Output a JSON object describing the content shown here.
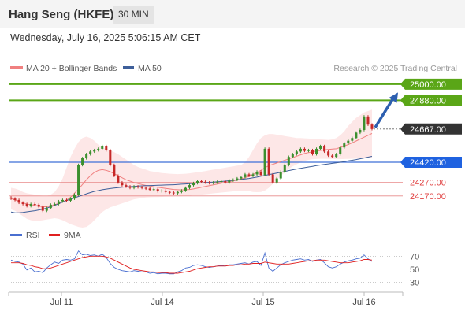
{
  "header": {
    "title": "Hang Seng (HKFE)",
    "interval": "30 MIN"
  },
  "datetime": "Wednesday, July 16, 2025 5:06:15 AM CET",
  "credit": "Research © 2025 Trading Central",
  "colors": {
    "resistance": "#5aa617",
    "support": "#3e6fd8",
    "intermediate": "#e04040",
    "current": "#333333",
    "bull": "#3b8f2e",
    "bear": "#c62828",
    "ma20": "#f08080",
    "ma50": "#3e5f9a",
    "bands": "#fde3e3",
    "arrow": "#2d5fb0",
    "rsi": "#4a6fd0",
    "rsi_ma": "#e02020"
  },
  "chart_data": [
    {
      "type": "candlestick",
      "title": "Hang Seng (HKFE)",
      "legend": [
        {
          "name": "MA 20 + Bollinger Bands",
          "color": "#f08080"
        },
        {
          "name": "MA 50",
          "color": "#3e5f9a"
        }
      ],
      "x_ticks": [
        "Jul 11",
        "Jul 14",
        "Jul 15",
        "Jul 16"
      ],
      "ylim": [
        23970,
        25040
      ],
      "levels": [
        {
          "label": "25000.00",
          "value": 25000,
          "kind": "resistance"
        },
        {
          "label": "24880.00",
          "value": 24880,
          "kind": "resistance"
        },
        {
          "label": "24667.00",
          "value": 24667,
          "kind": "current"
        },
        {
          "label": "24420.00",
          "value": 24420,
          "kind": "support"
        },
        {
          "label": "24270.00",
          "value": 24270,
          "kind": "intermediate"
        },
        {
          "label": "24170.00",
          "value": 24170,
          "kind": "intermediate"
        }
      ],
      "close": [
        24150,
        24140,
        24120,
        24110,
        24095,
        24110,
        24105,
        24090,
        24060,
        24080,
        24105,
        24110,
        24130,
        24140,
        24135,
        24150,
        24180,
        24400,
        24450,
        24480,
        24500,
        24510,
        24520,
        24540,
        24510,
        24400,
        24320,
        24270,
        24250,
        24240,
        24230,
        24240,
        24235,
        24230,
        24225,
        24215,
        24220,
        24205,
        24210,
        24200,
        24195,
        24190,
        24200,
        24210,
        24230,
        24250,
        24265,
        24280,
        24275,
        24270,
        24265,
        24270,
        24275,
        24280,
        24270,
        24285,
        24290,
        24300,
        24310,
        24330,
        24320,
        24330,
        24350,
        24325,
        24520,
        24330,
        24270,
        24300,
        24350,
        24400,
        24460,
        24480,
        24500,
        24520,
        24505,
        24510,
        24480,
        24520,
        24540,
        24500,
        24470,
        24460,
        24480,
        24530,
        24560,
        24580,
        24600,
        24640,
        24660,
        24760,
        24700,
        24667
      ],
      "ma20": [
        24150,
        24140,
        24130,
        24120,
        24110,
        24105,
        24100,
        24095,
        24090,
        24090,
        24095,
        24105,
        24115,
        24125,
        24140,
        24160,
        24190,
        24220,
        24255,
        24290,
        24320,
        24345,
        24360,
        24365,
        24360,
        24350,
        24335,
        24320,
        24305,
        24290,
        24280,
        24270,
        24262,
        24255,
        24248,
        24243,
        24238,
        24235,
        24230,
        24226,
        24222,
        24218,
        24216,
        24215,
        24216,
        24218,
        24222,
        24228,
        24234,
        24240,
        24246,
        24252,
        24258,
        24264,
        24270,
        24276,
        24282,
        24288,
        24295,
        24305,
        24315,
        24330,
        24345,
        24360,
        24380,
        24395,
        24405,
        24415,
        24425,
        24435,
        24445,
        24455,
        24465,
        24475,
        24485,
        24492,
        24498,
        24503,
        24508,
        24512,
        24515,
        24518,
        24520,
        24530,
        24540,
        24552,
        24564,
        24578,
        24592,
        24606,
        24620,
        24634
      ],
      "ma50": [
        24050,
        24045,
        24045,
        24048,
        24052,
        24056,
        24060,
        24066,
        24072,
        24080,
        24090,
        24100,
        24112,
        24124,
        24136,
        24146,
        24156,
        24166,
        24176,
        24186,
        24195,
        24204,
        24210,
        24216,
        24221,
        24225,
        24229,
        24232,
        24235,
        24237,
        24239,
        24241,
        24243,
        24245,
        24246,
        24247,
        24248,
        24249,
        24250,
        24251,
        24252,
        24253,
        24255,
        24257,
        24259,
        24261,
        24263,
        24265,
        24267,
        24269,
        24271,
        24273,
        24275,
        24277,
        24280,
        24283,
        24286,
        24289,
        24292,
        24296,
        24300,
        24305,
        24310,
        24316,
        24322,
        24328,
        24334,
        24340,
        24346,
        24352,
        24358,
        24364,
        24370,
        24375,
        24380,
        24385,
        24390,
        24395,
        24400,
        24404,
        24408,
        24412,
        24416,
        24420,
        24425,
        24430,
        24435,
        24440,
        24446,
        24452,
        24458,
        24464
      ],
      "bb_upper": [
        24230,
        24225,
        24215,
        24200,
        24190,
        24185,
        24180,
        24175,
        24172,
        24170,
        24180,
        24200,
        24240,
        24300,
        24380,
        24460,
        24520,
        24570,
        24600,
        24610,
        24600,
        24580,
        24550,
        24530,
        24520,
        24510,
        24495,
        24480,
        24460,
        24440,
        24420,
        24400,
        24385,
        24375,
        24365,
        24355,
        24350,
        24345,
        24340,
        24338,
        24335,
        24333,
        24332,
        24333,
        24335,
        24338,
        24342,
        24346,
        24350,
        24355,
        24360,
        24365,
        24370,
        24375,
        24380,
        24385,
        24390,
        24395,
        24400,
        24420,
        24460,
        24510,
        24560,
        24600,
        24620,
        24630,
        24630,
        24625,
        24620,
        24615,
        24610,
        24605,
        24600,
        24600,
        24598,
        24596,
        24594,
        24592,
        24590,
        24588,
        24586,
        24590,
        24600,
        24620,
        24650,
        24690,
        24720,
        24750,
        24770,
        24790,
        24800,
        24810
      ],
      "bb_lower": [
        24070,
        24060,
        24040,
        24020,
        24000,
        23990,
        23985,
        23985,
        23990,
        23995,
        24000,
        24005,
        24000,
        23990,
        23975,
        23960,
        23950,
        23940,
        23935,
        23940,
        23960,
        23990,
        24020,
        24050,
        24070,
        24085,
        24095,
        24105,
        24115,
        24125,
        24135,
        24145,
        24150,
        24155,
        24158,
        24160,
        24161,
        24162,
        24163,
        24164,
        24165,
        24166,
        24167,
        24168,
        24170,
        24172,
        24175,
        24178,
        24180,
        24183,
        24186,
        24189,
        24192,
        24195,
        24198,
        24201,
        24204,
        24207,
        24210,
        24210,
        24205,
        24200,
        24198,
        24200,
        24210,
        24230,
        24260,
        24290,
        24320,
        24345,
        24370,
        24390,
        24405,
        24420,
        24430,
        24438,
        24442,
        24444,
        24446,
        24446,
        24445,
        24444,
        24443,
        24443,
        24444,
        24445,
        24446,
        24447,
        24448,
        24449,
        24450,
        24451
      ],
      "trend_arrow": {
        "from": 24667,
        "to": 24880
      }
    },
    {
      "type": "line",
      "legend": [
        {
          "name": "RSI",
          "color": "#4a6fd0"
        },
        {
          "name": "9MA",
          "color": "#e02020"
        }
      ],
      "ylim": [
        20,
        80
      ],
      "y_ticks": [
        70,
        50,
        30
      ],
      "rsi": [
        64,
        62,
        61,
        58,
        49,
        52,
        46,
        47,
        45,
        52,
        57,
        61,
        59,
        64,
        65,
        64,
        66,
        78,
        72,
        73,
        71,
        72,
        70,
        73,
        68,
        59,
        53,
        50,
        48,
        47,
        46,
        48,
        47,
        46,
        46,
        44,
        45,
        43,
        44,
        44,
        43,
        43,
        46,
        48,
        52,
        53,
        56,
        57,
        56,
        54,
        53,
        54,
        55,
        56,
        55,
        57,
        57,
        58,
        59,
        60,
        58,
        61,
        62,
        56,
        75,
        52,
        47,
        52,
        57,
        60,
        62,
        64,
        65,
        66,
        64,
        65,
        62,
        64,
        65,
        60,
        54,
        52,
        54,
        58,
        61,
        63,
        64,
        66,
        67,
        72,
        66,
        62
      ],
      "rsi_ma": [
        60,
        60,
        60,
        59,
        57,
        56,
        54,
        53,
        51,
        51,
        52,
        54,
        56,
        58,
        60,
        62,
        64,
        66,
        68,
        69,
        70,
        70,
        70,
        70,
        69,
        67,
        64,
        61,
        58,
        55,
        52,
        50,
        49,
        48,
        47,
        46,
        46,
        45,
        45,
        45,
        44,
        44,
        44,
        45,
        46,
        47,
        49,
        51,
        52,
        53,
        54,
        54,
        55,
        55,
        55,
        56,
        56,
        57,
        57,
        58,
        58,
        59,
        59,
        59,
        61,
        60,
        59,
        58,
        58,
        58,
        58,
        59,
        60,
        61,
        62,
        63,
        63,
        64,
        64,
        64,
        63,
        62,
        61,
        60,
        60,
        60,
        61,
        62,
        63,
        65,
        65,
        64
      ]
    }
  ]
}
